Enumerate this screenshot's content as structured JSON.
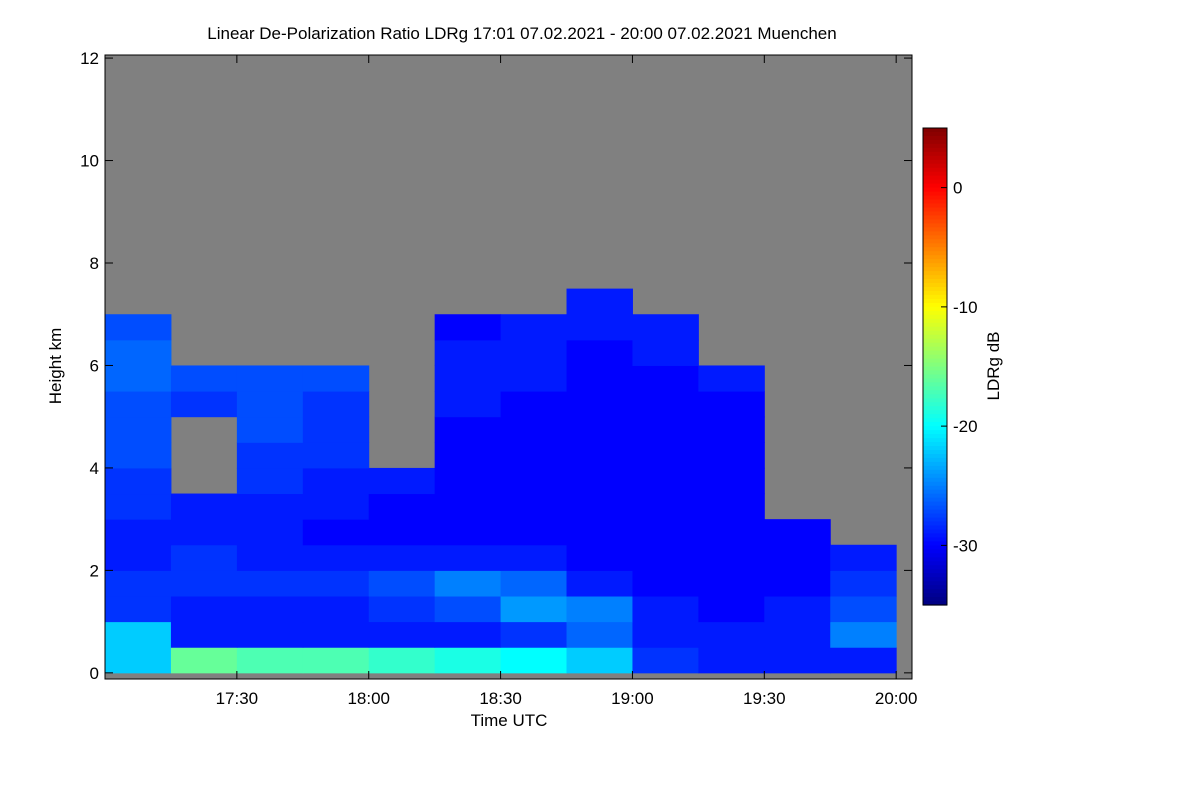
{
  "chart_data": {
    "type": "heatmap",
    "title": "Linear De-Polarization Ratio LDRg   17:01 07.02.2021 - 20:00 07.02.2021 Muenchen",
    "x_label": "Time UTC",
    "y_label": "Height km",
    "colorbar_label": "LDRg dB",
    "x_bins": [
      17,
      17.25,
      17.5,
      17.75,
      18,
      18.25,
      18.5,
      18.75,
      19,
      19.25,
      19.5,
      19.75,
      20
    ],
    "y_bins": [
      0,
      0.5,
      1,
      1.5,
      2,
      2.5,
      3,
      3.5,
      4,
      4.5,
      5,
      5.5,
      6,
      6.5,
      7,
      7.5,
      8,
      8.5,
      9,
      9.5,
      10,
      10.5,
      11,
      11.5,
      12
    ],
    "values": [
      [
        -22,
        -16,
        -17,
        -17,
        -18,
        -19,
        -20,
        -22,
        -28,
        -29,
        -29,
        -29
      ],
      [
        -22,
        -29,
        -29,
        -29,
        -29,
        -29,
        -28,
        -26,
        -29,
        -29,
        -29,
        -25
      ],
      [
        -28,
        -29,
        -29,
        -29,
        -28,
        -27,
        -24,
        -25,
        -29,
        -30,
        -29,
        -27
      ],
      [
        -28,
        -28,
        -28,
        -28,
        -27,
        -25,
        -26,
        -29,
        -30,
        -30,
        -30,
        -28
      ],
      [
        -29,
        -28,
        -29,
        -29,
        -29,
        -29,
        -29,
        -30,
        -30,
        -30,
        -30,
        -29
      ],
      [
        -29,
        -29,
        -29,
        -30,
        -30,
        -30,
        -30,
        -30,
        -30,
        -30,
        -30,
        null
      ],
      [
        -28,
        -29,
        -29,
        -29,
        -30,
        -30,
        -30,
        -30,
        -30,
        -30,
        null,
        null
      ],
      [
        -28,
        null,
        -28,
        -29,
        -29,
        -30,
        -30,
        -30,
        -30,
        -30,
        null,
        null
      ],
      [
        -27,
        null,
        -28,
        -28,
        null,
        -30,
        -30,
        -30,
        -30,
        -30,
        null,
        null
      ],
      [
        -27,
        null,
        -27,
        -28,
        null,
        -30,
        -30,
        -30,
        -30,
        -30,
        null,
        null
      ],
      [
        -27,
        -28,
        -27,
        -28,
        null,
        -29,
        -30,
        -30,
        -30,
        -30,
        null,
        null
      ],
      [
        -26,
        -27,
        -27,
        -27,
        null,
        -29,
        -29,
        -30,
        -30,
        -29,
        null,
        null
      ],
      [
        -26,
        null,
        null,
        null,
        null,
        -29,
        -29,
        -30,
        -29,
        null,
        null,
        null
      ],
      [
        -27,
        null,
        null,
        null,
        null,
        -30,
        -29,
        -29,
        -29,
        null,
        null,
        null
      ],
      [
        null,
        null,
        null,
        null,
        null,
        null,
        null,
        -29,
        null,
        null,
        null,
        null
      ],
      [
        null,
        null,
        null,
        null,
        null,
        null,
        null,
        null,
        null,
        null,
        null,
        null
      ],
      [
        null,
        null,
        null,
        null,
        null,
        null,
        null,
        null,
        null,
        null,
        null,
        null
      ],
      [
        null,
        null,
        null,
        null,
        null,
        null,
        null,
        null,
        null,
        null,
        null,
        null
      ],
      [
        null,
        null,
        null,
        null,
        null,
        null,
        null,
        null,
        null,
        null,
        null,
        null
      ],
      [
        null,
        null,
        null,
        null,
        null,
        null,
        null,
        null,
        null,
        null,
        null,
        null
      ],
      [
        null,
        null,
        null,
        null,
        null,
        null,
        null,
        null,
        null,
        null,
        null,
        null
      ],
      [
        null,
        null,
        null,
        null,
        null,
        null,
        null,
        null,
        null,
        null,
        null,
        null
      ],
      [
        null,
        null,
        null,
        null,
        null,
        null,
        null,
        null,
        null,
        null,
        null,
        null
      ],
      [
        null,
        null,
        null,
        null,
        null,
        null,
        null,
        null,
        null,
        null,
        null,
        null
      ]
    ],
    "missing_color": "#808080",
    "colormap": "jet",
    "xlim": [
      17,
      20.06
    ],
    "xticks": [
      {
        "value": 17.5,
        "label": "17:30"
      },
      {
        "value": 18,
        "label": "18:00"
      },
      {
        "value": 18.5,
        "label": "18:30"
      },
      {
        "value": 19,
        "label": "19:00"
      },
      {
        "value": 19.5,
        "label": "19:30"
      },
      {
        "value": 20,
        "label": "20:00"
      }
    ],
    "ylim": [
      -0.12,
      12.06
    ],
    "yticks": [
      0,
      2,
      4,
      6,
      8,
      10,
      12
    ],
    "clim": [
      -35,
      5
    ],
    "cticks": [
      -30,
      -20,
      -10,
      0
    ]
  }
}
